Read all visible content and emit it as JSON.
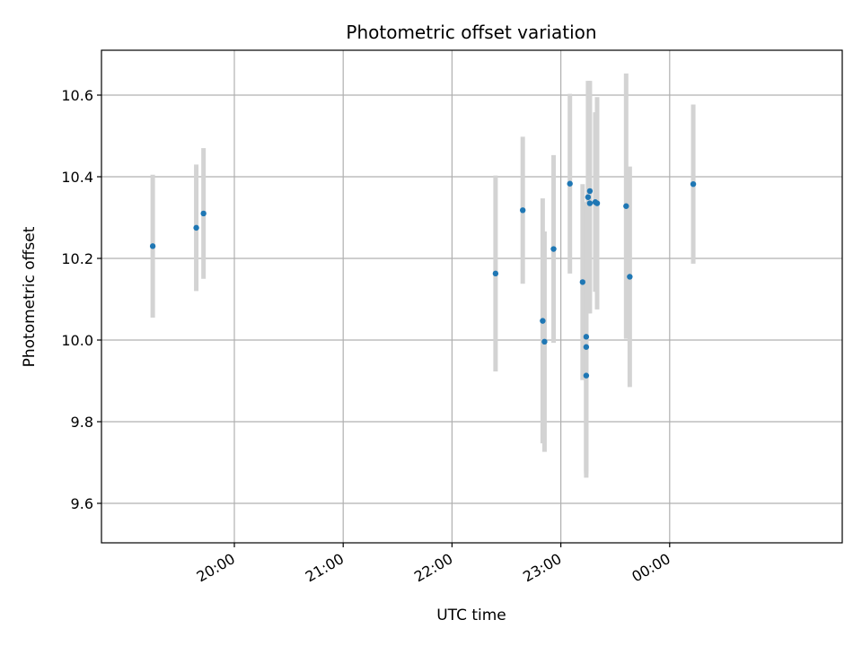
{
  "chart_data": {
    "type": "scatter",
    "title": "Photometric offset variation",
    "xlabel": "UTC time",
    "ylabel": "Photometric offset",
    "x_ticks": [
      "20:00",
      "21:00",
      "22:00",
      "23:00",
      "00:00"
    ],
    "y_ticks": [
      "9.6",
      "9.8",
      "10.0",
      "10.2",
      "10.4",
      "10.6"
    ],
    "grid": true,
    "error_bar_color": "#d3d3d3",
    "point_color": "#1f77b4",
    "series": [
      {
        "points": [
          {
            "time": "19:15",
            "y": 10.23,
            "err": 0.175
          },
          {
            "time": "19:39",
            "y": 10.275,
            "err": 0.155
          },
          {
            "time": "19:43",
            "y": 10.31,
            "err": 0.16
          },
          {
            "time": "22:24",
            "y": 10.163,
            "err": 0.24
          },
          {
            "time": "22:39",
            "y": 10.318,
            "err": 0.18
          },
          {
            "time": "22:50",
            "y": 10.047,
            "err": 0.3
          },
          {
            "time": "22:51",
            "y": 9.996,
            "err": 0.27
          },
          {
            "time": "22:56",
            "y": 10.223,
            "err": 0.23
          },
          {
            "time": "23:05",
            "y": 10.383,
            "err": 0.22
          },
          {
            "time": "23:12",
            "y": 10.142,
            "err": 0.24
          },
          {
            "time": "23:14",
            "y": 10.008,
            "err": 0.33
          },
          {
            "time": "23:14",
            "y": 9.983,
            "err": 0.31
          },
          {
            "time": "23:14",
            "y": 9.913,
            "err": 0.25
          },
          {
            "time": "23:15",
            "y": 10.35,
            "err": 0.285
          },
          {
            "time": "23:16",
            "y": 10.365,
            "err": 0.27
          },
          {
            "time": "23:16",
            "y": 10.335,
            "err": 0.27
          },
          {
            "time": "23:19",
            "y": 10.338,
            "err": 0.22
          },
          {
            "time": "23:20",
            "y": 10.335,
            "err": 0.26
          },
          {
            "time": "23:36",
            "y": 10.328,
            "err": 0.325
          },
          {
            "time": "23:38",
            "y": 10.155,
            "err": 0.27
          },
          {
            "time": "00:13",
            "y": 10.382,
            "err": 0.195
          }
        ]
      }
    ]
  }
}
